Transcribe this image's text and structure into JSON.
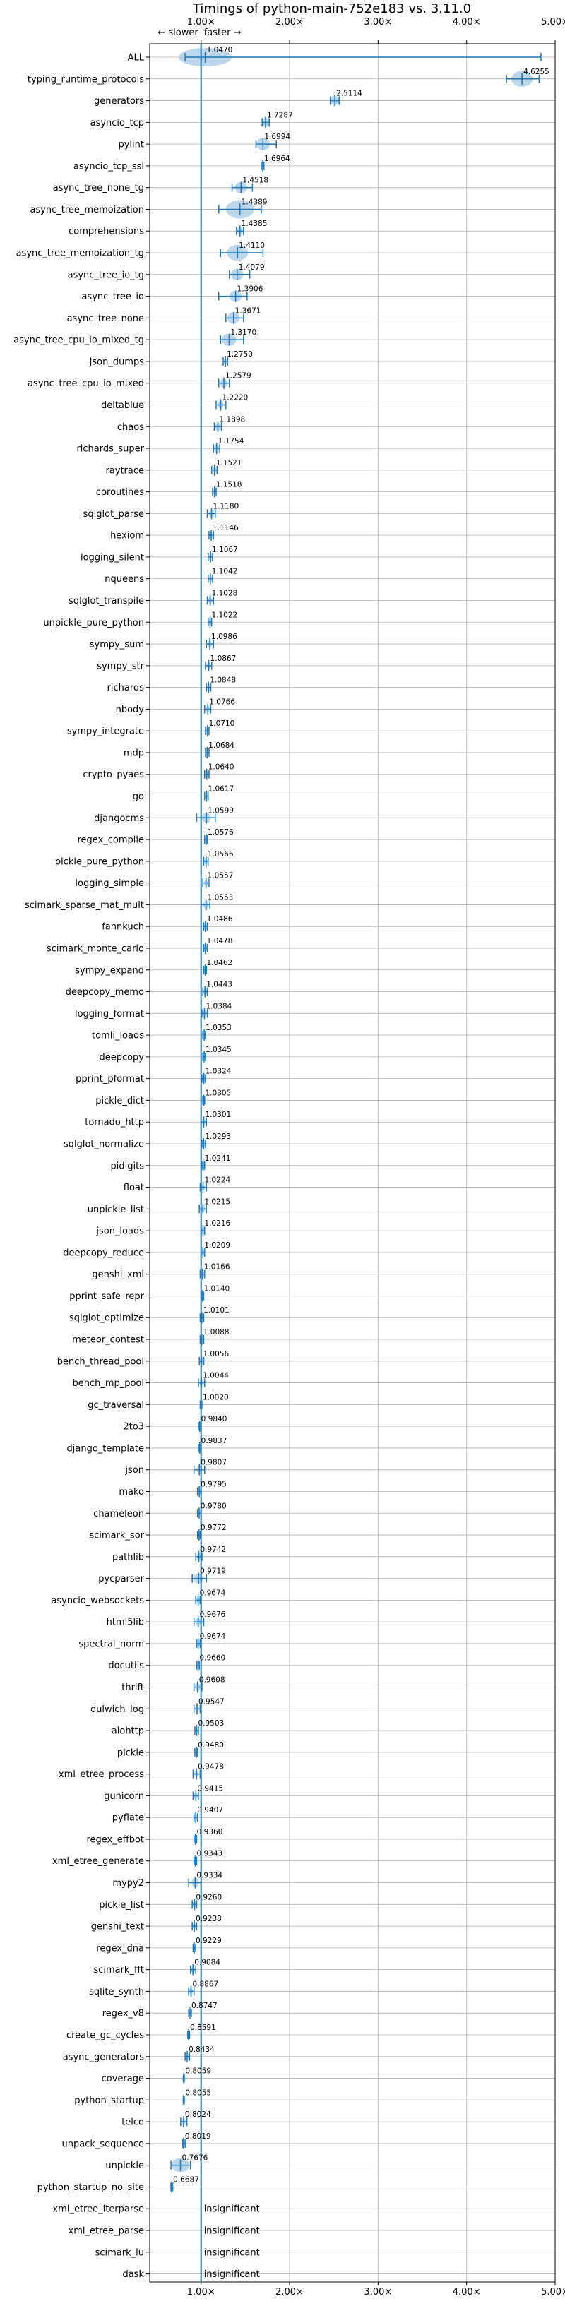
{
  "chart_data": {
    "type": "scatter",
    "title": "Timings of python-main-752e183 vs. 3.11.0",
    "speed_labels": {
      "slower": "← slower",
      "faster": "faster →"
    },
    "x_ticks": [
      {
        "value": 1,
        "label": "1.00×"
      },
      {
        "value": 2,
        "label": "2.00×"
      },
      {
        "value": 3,
        "label": "3.00×"
      },
      {
        "value": 4,
        "label": "4.00×"
      },
      {
        "value": 5,
        "label": "5.00×"
      }
    ],
    "xlim": [
      0.42,
      5.0
    ],
    "reference_line": 1.0,
    "grid": true,
    "insignificant_text": "insignificant",
    "colors": {
      "marker": "#1f77b4",
      "violin": "#a6c8e6",
      "reference": "#1f77b4",
      "grid": "#b0b0b0"
    },
    "rows": [
      {
        "name": "ALL",
        "value": 1.047,
        "label": "1.0470",
        "lo": 0.82,
        "hi": 4.84,
        "spread": 0.3
      },
      {
        "name": "typing_runtime_protocols",
        "value": 4.6255,
        "label": "4.6255",
        "lo": 4.45,
        "hi": 4.82,
        "spread": 0.12
      },
      {
        "name": "generators",
        "value": 2.5114,
        "label": "2.5114",
        "lo": 2.46,
        "hi": 2.56,
        "spread": 0.05
      },
      {
        "name": "asyncio_tcp",
        "value": 1.7287,
        "label": "1.7287",
        "lo": 1.69,
        "hi": 1.77,
        "spread": 0.04
      },
      {
        "name": "pylint",
        "value": 1.6994,
        "label": "1.6994",
        "lo": 1.62,
        "hi": 1.85,
        "spread": 0.08
      },
      {
        "name": "asyncio_tcp_ssl",
        "value": 1.6964,
        "label": "1.6964",
        "lo": 1.68,
        "hi": 1.71,
        "spread": 0.02
      },
      {
        "name": "async_tree_none_tg",
        "value": 1.4518,
        "label": "1.4518",
        "lo": 1.35,
        "hi": 1.58,
        "spread": 0.07
      },
      {
        "name": "async_tree_memoization",
        "value": 1.4389,
        "label": "1.4389",
        "lo": 1.2,
        "hi": 1.68,
        "spread": 0.16
      },
      {
        "name": "comprehensions",
        "value": 1.4385,
        "label": "1.4385",
        "lo": 1.4,
        "hi": 1.48,
        "spread": 0.03
      },
      {
        "name": "async_tree_memoization_tg",
        "value": 1.411,
        "label": "1.4110",
        "lo": 1.22,
        "hi": 1.7,
        "spread": 0.12
      },
      {
        "name": "async_tree_io_tg",
        "value": 1.4079,
        "label": "1.4079",
        "lo": 1.32,
        "hi": 1.55,
        "spread": 0.07
      },
      {
        "name": "async_tree_io",
        "value": 1.3906,
        "label": "1.3906",
        "lo": 1.2,
        "hi": 1.52,
        "spread": 0.07
      },
      {
        "name": "async_tree_none",
        "value": 1.3671,
        "label": "1.3671",
        "lo": 1.28,
        "hi": 1.48,
        "spread": 0.07
      },
      {
        "name": "async_tree_cpu_io_mixed_tg",
        "value": 1.317,
        "label": "1.3170",
        "lo": 1.22,
        "hi": 1.48,
        "spread": 0.08
      },
      {
        "name": "json_dumps",
        "value": 1.275,
        "label": "1.2750",
        "lo": 1.25,
        "hi": 1.3,
        "spread": 0.02
      },
      {
        "name": "async_tree_cpu_io_mixed",
        "value": 1.2579,
        "label": "1.2579",
        "lo": 1.2,
        "hi": 1.32,
        "spread": 0.04
      },
      {
        "name": "deltablue",
        "value": 1.222,
        "label": "1.2220",
        "lo": 1.17,
        "hi": 1.28,
        "spread": 0.03
      },
      {
        "name": "chaos",
        "value": 1.1898,
        "label": "1.1898",
        "lo": 1.15,
        "hi": 1.23,
        "spread": 0.03
      },
      {
        "name": "richards_super",
        "value": 1.1754,
        "label": "1.1754",
        "lo": 1.14,
        "hi": 1.21,
        "spread": 0.03
      },
      {
        "name": "raytrace",
        "value": 1.1521,
        "label": "1.1521",
        "lo": 1.12,
        "hi": 1.18,
        "spread": 0.02
      },
      {
        "name": "coroutines",
        "value": 1.1518,
        "label": "1.1518",
        "lo": 1.13,
        "hi": 1.17,
        "spread": 0.02
      },
      {
        "name": "sqlglot_parse",
        "value": 1.118,
        "label": "1.1180",
        "lo": 1.07,
        "hi": 1.16,
        "spread": 0.03
      },
      {
        "name": "hexiom",
        "value": 1.1146,
        "label": "1.1146",
        "lo": 1.09,
        "hi": 1.14,
        "spread": 0.02
      },
      {
        "name": "logging_silent",
        "value": 1.1067,
        "label": "1.1067",
        "lo": 1.08,
        "hi": 1.13,
        "spread": 0.02
      },
      {
        "name": "nqueens",
        "value": 1.1042,
        "label": "1.1042",
        "lo": 1.08,
        "hi": 1.13,
        "spread": 0.02
      },
      {
        "name": "sqlglot_transpile",
        "value": 1.1028,
        "label": "1.1028",
        "lo": 1.07,
        "hi": 1.14,
        "spread": 0.02
      },
      {
        "name": "unpickle_pure_python",
        "value": 1.1022,
        "label": "1.1022",
        "lo": 1.08,
        "hi": 1.12,
        "spread": 0.02
      },
      {
        "name": "sympy_sum",
        "value": 1.0986,
        "label": "1.0986",
        "lo": 1.06,
        "hi": 1.14,
        "spread": 0.02
      },
      {
        "name": "sympy_str",
        "value": 1.0867,
        "label": "1.0867",
        "lo": 1.05,
        "hi": 1.12,
        "spread": 0.02
      },
      {
        "name": "richards",
        "value": 1.0848,
        "label": "1.0848",
        "lo": 1.06,
        "hi": 1.11,
        "spread": 0.02
      },
      {
        "name": "nbody",
        "value": 1.0766,
        "label": "1.0766",
        "lo": 1.04,
        "hi": 1.11,
        "spread": 0.02
      },
      {
        "name": "sympy_integrate",
        "value": 1.071,
        "label": "1.0710",
        "lo": 1.05,
        "hi": 1.09,
        "spread": 0.02
      },
      {
        "name": "mdp",
        "value": 1.0684,
        "label": "1.0684",
        "lo": 1.05,
        "hi": 1.09,
        "spread": 0.02
      },
      {
        "name": "crypto_pyaes",
        "value": 1.064,
        "label": "1.0640",
        "lo": 1.04,
        "hi": 1.09,
        "spread": 0.02
      },
      {
        "name": "go",
        "value": 1.0617,
        "label": "1.0617",
        "lo": 1.04,
        "hi": 1.08,
        "spread": 0.02
      },
      {
        "name": "djangocms",
        "value": 1.0599,
        "label": "1.0599",
        "lo": 0.95,
        "hi": 1.16,
        "spread": 0.05
      },
      {
        "name": "regex_compile",
        "value": 1.0576,
        "label": "1.0576",
        "lo": 1.04,
        "hi": 1.07,
        "spread": 0.02
      },
      {
        "name": "pickle_pure_python",
        "value": 1.0566,
        "label": "1.0566",
        "lo": 1.03,
        "hi": 1.08,
        "spread": 0.02
      },
      {
        "name": "logging_simple",
        "value": 1.0557,
        "label": "1.0557",
        "lo": 1.02,
        "hi": 1.09,
        "spread": 0.02
      },
      {
        "name": "scimark_sparse_mat_mult",
        "value": 1.0553,
        "label": "1.0553",
        "lo": 1.0,
        "hi": 1.1,
        "spread": 0.03
      },
      {
        "name": "fannkuch",
        "value": 1.0486,
        "label": "1.0486",
        "lo": 1.03,
        "hi": 1.07,
        "spread": 0.02
      },
      {
        "name": "scimark_monte_carlo",
        "value": 1.0478,
        "label": "1.0478",
        "lo": 1.03,
        "hi": 1.07,
        "spread": 0.02
      },
      {
        "name": "sympy_expand",
        "value": 1.0462,
        "label": "1.0462",
        "lo": 1.03,
        "hi": 1.06,
        "spread": 0.02
      },
      {
        "name": "deepcopy_memo",
        "value": 1.0443,
        "label": "1.0443",
        "lo": 1.02,
        "hi": 1.07,
        "spread": 0.02
      },
      {
        "name": "logging_format",
        "value": 1.0384,
        "label": "1.0384",
        "lo": 1.01,
        "hi": 1.07,
        "spread": 0.02
      },
      {
        "name": "tomli_loads",
        "value": 1.0353,
        "label": "1.0353",
        "lo": 1.02,
        "hi": 1.05,
        "spread": 0.02
      },
      {
        "name": "deepcopy",
        "value": 1.0345,
        "label": "1.0345",
        "lo": 1.02,
        "hi": 1.05,
        "spread": 0.02
      },
      {
        "name": "pprint_pformat",
        "value": 1.0324,
        "label": "1.0324",
        "lo": 1.01,
        "hi": 1.05,
        "spread": 0.02
      },
      {
        "name": "pickle_dict",
        "value": 1.0305,
        "label": "1.0305",
        "lo": 1.02,
        "hi": 1.04,
        "spread": 0.02
      },
      {
        "name": "tornado_http",
        "value": 1.0301,
        "label": "1.0301",
        "lo": 1.0,
        "hi": 1.06,
        "spread": 0.02
      },
      {
        "name": "sqlglot_normalize",
        "value": 1.0293,
        "label": "1.0293",
        "lo": 1.01,
        "hi": 1.05,
        "spread": 0.02
      },
      {
        "name": "pidigits",
        "value": 1.0241,
        "label": "1.0241",
        "lo": 1.01,
        "hi": 1.04,
        "spread": 0.02
      },
      {
        "name": "float",
        "value": 1.0224,
        "label": "1.0224",
        "lo": 0.99,
        "hi": 1.06,
        "spread": 0.02
      },
      {
        "name": "unpickle_list",
        "value": 1.0215,
        "label": "1.0215",
        "lo": 0.98,
        "hi": 1.06,
        "spread": 0.02
      },
      {
        "name": "json_loads",
        "value": 1.0216,
        "label": "1.0216",
        "lo": 1.0,
        "hi": 1.04,
        "spread": 0.02
      },
      {
        "name": "deepcopy_reduce",
        "value": 1.0209,
        "label": "1.0209",
        "lo": 1.0,
        "hi": 1.04,
        "spread": 0.02
      },
      {
        "name": "genshi_xml",
        "value": 1.0166,
        "label": "1.0166",
        "lo": 0.99,
        "hi": 1.04,
        "spread": 0.02
      },
      {
        "name": "pprint_safe_repr",
        "value": 1.014,
        "label": "1.0140",
        "lo": 1.0,
        "hi": 1.03,
        "spread": 0.02
      },
      {
        "name": "sqlglot_optimize",
        "value": 1.0101,
        "label": "1.0101",
        "lo": 0.99,
        "hi": 1.03,
        "spread": 0.02
      },
      {
        "name": "meteor_contest",
        "value": 1.0088,
        "label": "1.0088",
        "lo": 0.99,
        "hi": 1.03,
        "spread": 0.02
      },
      {
        "name": "bench_thread_pool",
        "value": 1.0056,
        "label": "1.0056",
        "lo": 0.98,
        "hi": 1.03,
        "spread": 0.02
      },
      {
        "name": "bench_mp_pool",
        "value": 1.0044,
        "label": "1.0044",
        "lo": 0.97,
        "hi": 1.04,
        "spread": 0.02
      },
      {
        "name": "gc_traversal",
        "value": 1.002,
        "label": "1.0020",
        "lo": 0.99,
        "hi": 1.02,
        "spread": 0.02
      },
      {
        "name": "2to3",
        "value": 0.984,
        "label": "0.9840",
        "lo": 0.97,
        "hi": 1.0,
        "spread": 0.02
      },
      {
        "name": "django_template",
        "value": 0.9837,
        "label": "0.9837",
        "lo": 0.97,
        "hi": 1.0,
        "spread": 0.02
      },
      {
        "name": "json",
        "value": 0.9807,
        "label": "0.9807",
        "lo": 0.92,
        "hi": 1.04,
        "spread": 0.03
      },
      {
        "name": "mako",
        "value": 0.9795,
        "label": "0.9795",
        "lo": 0.96,
        "hi": 1.0,
        "spread": 0.02
      },
      {
        "name": "chameleon",
        "value": 0.978,
        "label": "0.9780",
        "lo": 0.96,
        "hi": 1.0,
        "spread": 0.02
      },
      {
        "name": "scimark_sor",
        "value": 0.9772,
        "label": "0.9772",
        "lo": 0.96,
        "hi": 0.99,
        "spread": 0.02
      },
      {
        "name": "pathlib",
        "value": 0.9742,
        "label": "0.9742",
        "lo": 0.94,
        "hi": 1.01,
        "spread": 0.02
      },
      {
        "name": "pycparser",
        "value": 0.9719,
        "label": "0.9719",
        "lo": 0.9,
        "hi": 1.06,
        "spread": 0.05
      },
      {
        "name": "asyncio_websockets",
        "value": 0.9674,
        "label": "0.9674",
        "lo": 0.94,
        "hi": 0.99,
        "spread": 0.02
      },
      {
        "name": "html5lib",
        "value": 0.9676,
        "label": "0.9676",
        "lo": 0.92,
        "hi": 1.03,
        "spread": 0.03
      },
      {
        "name": "spectral_norm",
        "value": 0.9674,
        "label": "0.9674",
        "lo": 0.95,
        "hi": 0.99,
        "spread": 0.02
      },
      {
        "name": "docutils",
        "value": 0.966,
        "label": "0.9660",
        "lo": 0.95,
        "hi": 0.98,
        "spread": 0.02
      },
      {
        "name": "thrift",
        "value": 0.9608,
        "label": "0.9608",
        "lo": 0.92,
        "hi": 1.01,
        "spread": 0.03
      },
      {
        "name": "dulwich_log",
        "value": 0.9547,
        "label": "0.9547",
        "lo": 0.92,
        "hi": 0.99,
        "spread": 0.02
      },
      {
        "name": "aiohttp",
        "value": 0.9503,
        "label": "0.9503",
        "lo": 0.93,
        "hi": 0.97,
        "spread": 0.02
      },
      {
        "name": "pickle",
        "value": 0.948,
        "label": "0.9480",
        "lo": 0.93,
        "hi": 0.96,
        "spread": 0.02
      },
      {
        "name": "xml_etree_process",
        "value": 0.9478,
        "label": "0.9478",
        "lo": 0.91,
        "hi": 0.99,
        "spread": 0.02
      },
      {
        "name": "gunicorn",
        "value": 0.9415,
        "label": "0.9415",
        "lo": 0.91,
        "hi": 0.97,
        "spread": 0.02
      },
      {
        "name": "pyflate",
        "value": 0.9407,
        "label": "0.9407",
        "lo": 0.92,
        "hi": 0.96,
        "spread": 0.02
      },
      {
        "name": "regex_effbot",
        "value": 0.936,
        "label": "0.9360",
        "lo": 0.92,
        "hi": 0.95,
        "spread": 0.02
      },
      {
        "name": "xml_etree_generate",
        "value": 0.9343,
        "label": "0.9343",
        "lo": 0.92,
        "hi": 0.95,
        "spread": 0.02
      },
      {
        "name": "mypy2",
        "value": 0.9334,
        "label": "0.9334",
        "lo": 0.86,
        "hi": 1.0,
        "spread": 0.04
      },
      {
        "name": "pickle_list",
        "value": 0.926,
        "label": "0.9260",
        "lo": 0.9,
        "hi": 0.95,
        "spread": 0.02
      },
      {
        "name": "genshi_text",
        "value": 0.9238,
        "label": "0.9238",
        "lo": 0.9,
        "hi": 0.95,
        "spread": 0.02
      },
      {
        "name": "regex_dna",
        "value": 0.9229,
        "label": "0.9229",
        "lo": 0.91,
        "hi": 0.94,
        "spread": 0.01
      },
      {
        "name": "scimark_fft",
        "value": 0.9084,
        "label": "0.9084",
        "lo": 0.88,
        "hi": 0.94,
        "spread": 0.02
      },
      {
        "name": "sqlite_synth",
        "value": 0.8867,
        "label": "0.8867",
        "lo": 0.86,
        "hi": 0.92,
        "spread": 0.02
      },
      {
        "name": "regex_v8",
        "value": 0.8747,
        "label": "0.8747",
        "lo": 0.86,
        "hi": 0.89,
        "spread": 0.01
      },
      {
        "name": "create_gc_cycles",
        "value": 0.8591,
        "label": "0.8591",
        "lo": 0.85,
        "hi": 0.87,
        "spread": 0.01
      },
      {
        "name": "async_generators",
        "value": 0.8434,
        "label": "0.8434",
        "lo": 0.82,
        "hi": 0.87,
        "spread": 0.02
      },
      {
        "name": "coverage",
        "value": 0.8059,
        "label": "0.8059",
        "lo": 0.8,
        "hi": 0.81,
        "spread": 0.01
      },
      {
        "name": "python_startup",
        "value": 0.8055,
        "label": "0.8055",
        "lo": 0.8,
        "hi": 0.81,
        "spread": 0.01
      },
      {
        "name": "telco",
        "value": 0.8024,
        "label": "0.8024",
        "lo": 0.77,
        "hi": 0.84,
        "spread": 0.02
      },
      {
        "name": "unpack_sequence",
        "value": 0.8019,
        "label": "0.8019",
        "lo": 0.79,
        "hi": 0.82,
        "spread": 0.01
      },
      {
        "name": "unpickle",
        "value": 0.7676,
        "label": "0.7676",
        "lo": 0.66,
        "hi": 0.88,
        "spread": 0.1
      },
      {
        "name": "python_startup_no_site",
        "value": 0.6687,
        "label": "0.6687",
        "lo": 0.66,
        "hi": 0.68,
        "spread": 0.01
      },
      {
        "name": "xml_etree_iterparse",
        "value": null,
        "label": null,
        "insignificant": true
      },
      {
        "name": "xml_etree_parse",
        "value": null,
        "label": null,
        "insignificant": true
      },
      {
        "name": "scimark_lu",
        "value": null,
        "label": null,
        "insignificant": true
      },
      {
        "name": "dask",
        "value": null,
        "label": null,
        "insignificant": true
      }
    ]
  }
}
